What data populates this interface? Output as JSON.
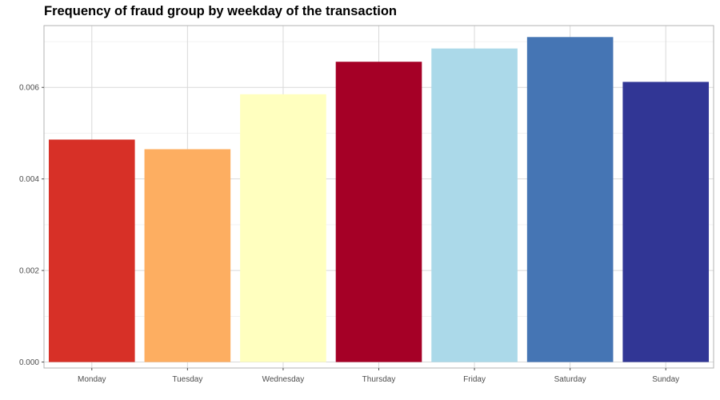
{
  "chart_data": {
    "type": "bar",
    "title": "Frequency of fraud group by weekday of the transaction",
    "xlabel": "",
    "ylabel": "",
    "categories": [
      "Monday",
      "Tuesday",
      "Wednesday",
      "Thursday",
      "Friday",
      "Saturday",
      "Sunday"
    ],
    "values": [
      0.00486,
      0.00465,
      0.00585,
      0.00656,
      0.00685,
      0.0071,
      0.00612
    ],
    "colors": [
      "#D73027",
      "#FDAE61",
      "#FFFFBF",
      "#A50026",
      "#ABD9E9",
      "#4575B4",
      "#313695"
    ],
    "ylim": [
      -0.00013,
      0.00735
    ],
    "yticks": [
      0.0,
      0.002,
      0.004,
      0.006
    ],
    "ytick_labels": [
      "0.000",
      "0.002",
      "0.004",
      "0.006"
    ],
    "grid": true,
    "legend": "none"
  }
}
